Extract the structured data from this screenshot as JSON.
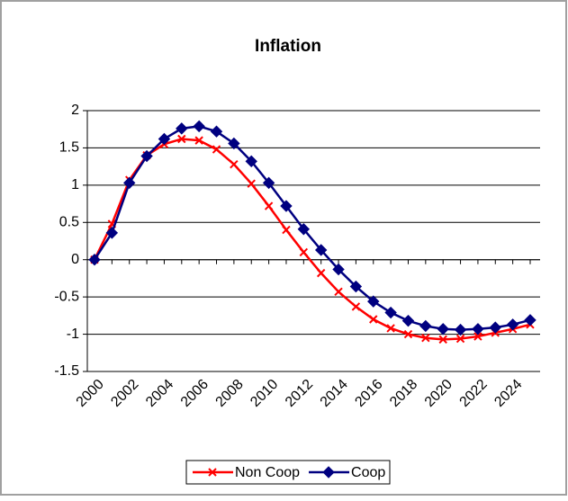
{
  "chart_data": {
    "type": "line",
    "title": "Inflation",
    "categories": [
      "2000",
      null,
      "2002",
      null,
      "2004",
      null,
      "2006",
      null,
      "2008",
      null,
      "2010",
      null,
      "2012",
      null,
      "2014",
      null,
      "2016",
      null,
      "2018",
      null,
      "2020",
      null,
      "2022",
      null,
      "2024",
      null
    ],
    "series": [
      {
        "name": "Non Coop",
        "color": "#ff0000",
        "marker": "x",
        "values": [
          0,
          0.48,
          1.07,
          1.4,
          1.55,
          1.62,
          1.6,
          1.48,
          1.28,
          1.02,
          0.72,
          0.4,
          0.1,
          -0.18,
          -0.43,
          -0.63,
          -0.8,
          -0.92,
          -1.0,
          -1.05,
          -1.07,
          -1.06,
          -1.03,
          -0.98,
          -0.93,
          -0.87
        ]
      },
      {
        "name": "Coop",
        "color": "#000080",
        "marker": "diamond",
        "values": [
          0,
          0.36,
          1.03,
          1.39,
          1.62,
          1.76,
          1.79,
          1.72,
          1.56,
          1.32,
          1.03,
          0.72,
          0.41,
          0.13,
          -0.13,
          -0.36,
          -0.56,
          -0.71,
          -0.82,
          -0.89,
          -0.93,
          -0.94,
          -0.93,
          -0.91,
          -0.87,
          -0.81
        ]
      }
    ],
    "ylim": [
      -1.5,
      2
    ],
    "yticks": [
      -1.5,
      -1,
      -0.5,
      0,
      0.5,
      1,
      1.5,
      2
    ],
    "grid": true,
    "legend": "bottom"
  }
}
